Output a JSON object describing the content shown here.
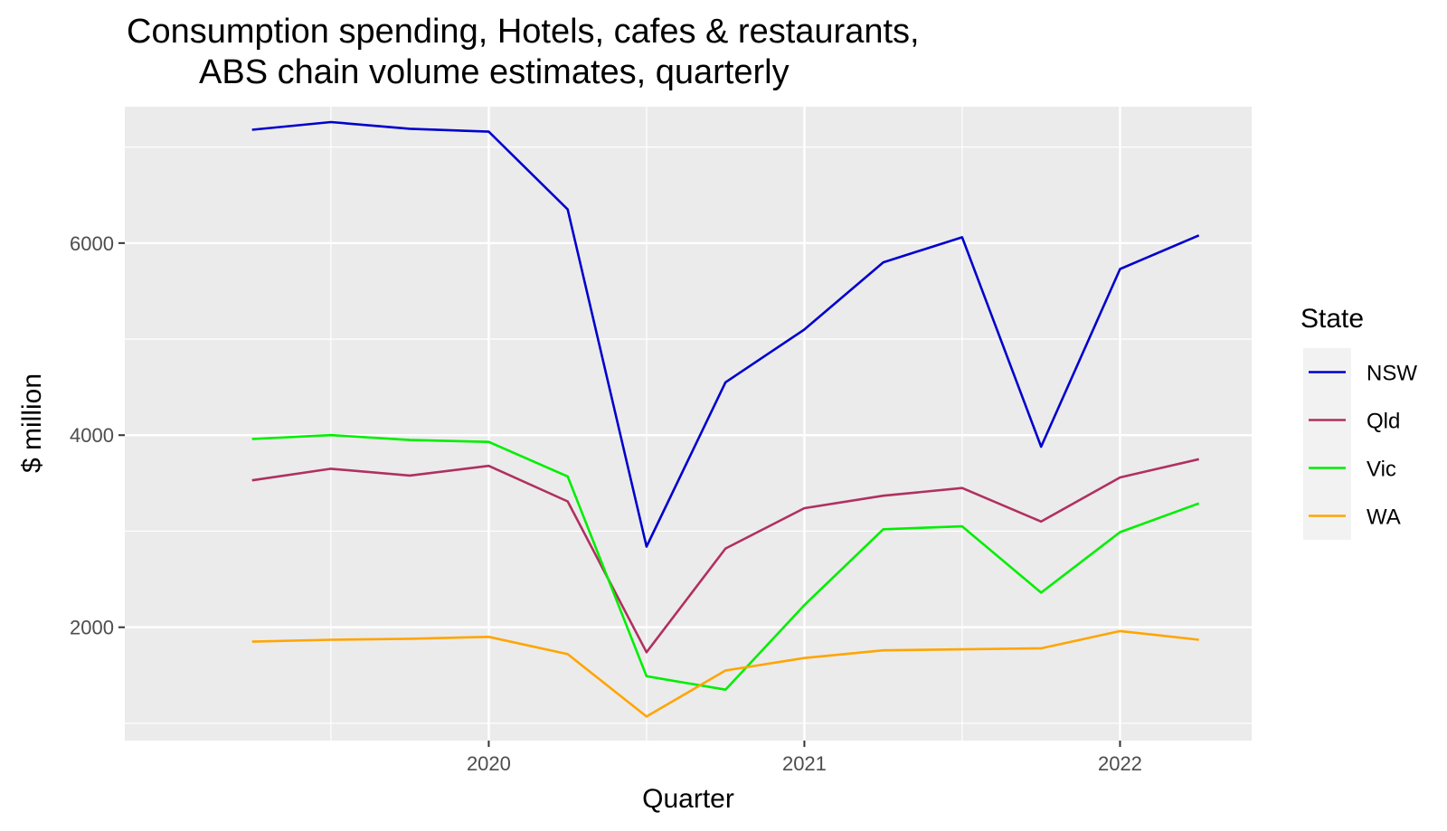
{
  "chart_data": {
    "type": "line",
    "title": [
      "Consumption spending, Hotels, cafes & restaurants,",
      "ABS chain volume estimates, quarterly"
    ],
    "xlabel": "Quarter",
    "ylabel": "$ million",
    "x": [
      2019.25,
      2019.5,
      2019.75,
      2020.0,
      2020.25,
      2020.5,
      2020.75,
      2021.0,
      2021.25,
      2021.5,
      2021.75,
      2022.0,
      2022.25
    ],
    "xlim": [
      2018.847,
      2022.417
    ],
    "ylim": [
      820,
      7420
    ],
    "xticks": [
      2020,
      2021,
      2022
    ],
    "xtick_labels": [
      "2020",
      "2021",
      "2022"
    ],
    "yticks": [
      2000,
      4000,
      6000
    ],
    "ytick_labels": [
      "2000",
      "4000",
      "6000"
    ],
    "grid": true,
    "legend_title": "State",
    "legend_position": "right",
    "series": [
      {
        "name": "NSW",
        "color": "#0000CD",
        "values": [
          7180,
          7260,
          7190,
          7160,
          6350,
          2840,
          4550,
          5100,
          5800,
          6060,
          3880,
          5730,
          6080
        ]
      },
      {
        "name": "Qld",
        "color": "#B03060",
        "values": [
          3530,
          3650,
          3580,
          3680,
          3310,
          1740,
          2820,
          3240,
          3370,
          3450,
          3100,
          3560,
          3750
        ]
      },
      {
        "name": "Vic",
        "color": "#00EE00",
        "values": [
          3960,
          4000,
          3950,
          3930,
          3570,
          1490,
          1350,
          2230,
          3020,
          3050,
          2360,
          2990,
          3290
        ]
      },
      {
        "name": "WA",
        "color": "#FFA500",
        "values": [
          1850,
          1870,
          1880,
          1900,
          1720,
          1070,
          1550,
          1680,
          1760,
          1770,
          1780,
          1960,
          1870
        ]
      }
    ]
  }
}
